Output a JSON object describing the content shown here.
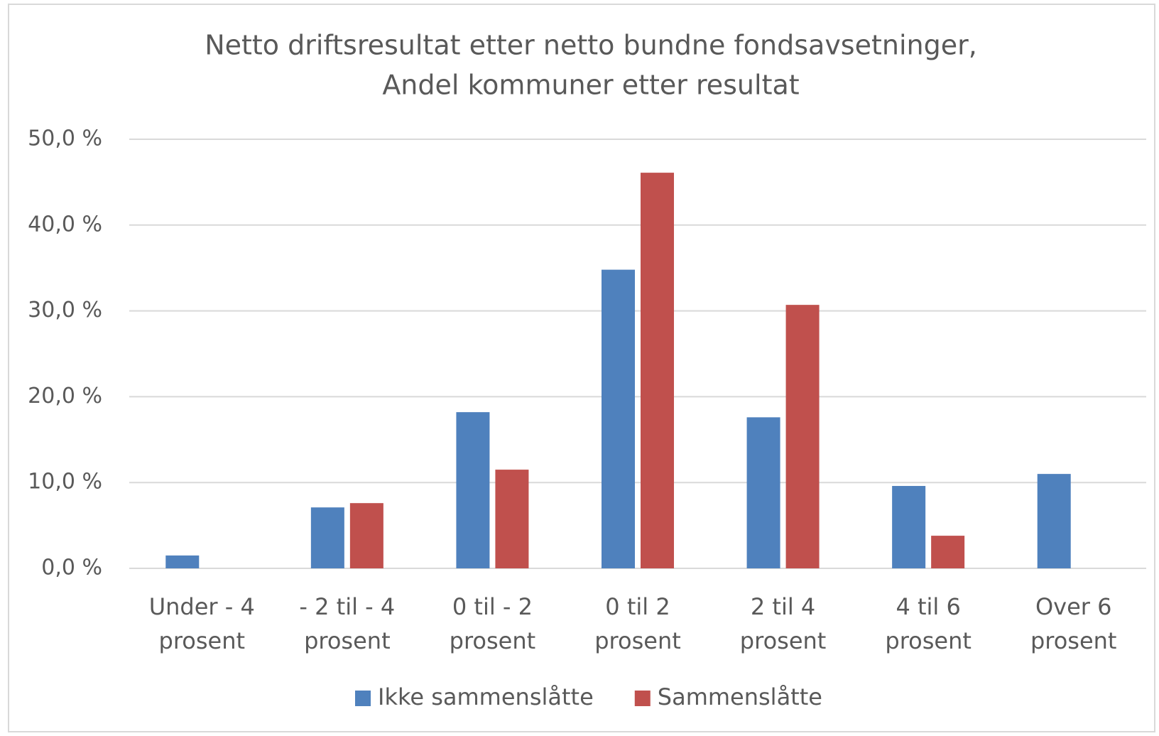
{
  "chart_data": {
    "type": "bar",
    "title": [
      "Netto driftsresultat etter netto bundne fondsavsetninger,",
      "Andel kommuner etter resultat"
    ],
    "categories": [
      "Under - 4 prosent",
      "- 2 til - 4 prosent",
      "0 til - 2 prosent",
      "0 til 2 prosent",
      "2 til 4 prosent",
      "4 til 6 prosent",
      "Over 6 prosent"
    ],
    "series": [
      {
        "name": "Ikke sammenslåtte",
        "color": "#4f81bd",
        "values": [
          1.5,
          7.1,
          18.2,
          34.8,
          17.6,
          9.6,
          11.0
        ]
      },
      {
        "name": "Sammenslåtte",
        "color": "#c0504d",
        "values": [
          0,
          7.6,
          11.5,
          46.1,
          30.7,
          3.8,
          0
        ]
      }
    ],
    "ylim": [
      0,
      50
    ],
    "yticks": [
      {
        "value": 0,
        "label": "0,0 %"
      },
      {
        "value": 10,
        "label": "10,0 %"
      },
      {
        "value": 20,
        "label": "20,0 %"
      },
      {
        "value": 30,
        "label": "30,0 %"
      },
      {
        "value": 40,
        "label": "40,0 %"
      },
      {
        "value": 50,
        "label": "50,0 %"
      }
    ],
    "grid": true,
    "legend": "bottom"
  }
}
